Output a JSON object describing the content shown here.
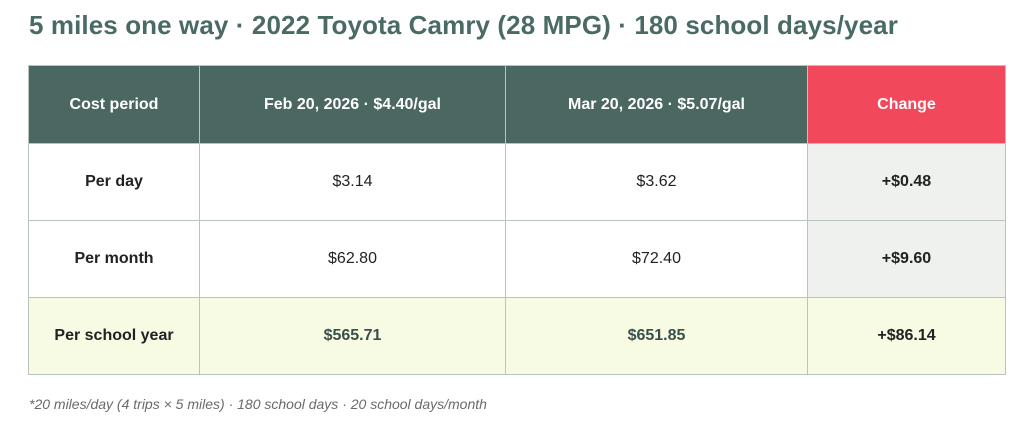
{
  "title": "5 miles one way · 2022 Toyota Camry (28 MPG) · 180 school days/year",
  "table": {
    "headers": {
      "period": "Cost period",
      "feb": "Feb 20, 2026 · $4.40/gal",
      "mar": "Mar 20, 2026 · $5.07/gal",
      "change": "Change"
    },
    "rows": [
      {
        "label": "Per day",
        "feb": "$3.14",
        "mar": "$3.62",
        "change": "+$0.48"
      },
      {
        "label": "Per month",
        "feb": "$62.80",
        "mar": "$72.40",
        "change": "+$9.60"
      },
      {
        "label": "Per school year",
        "feb": "$565.71",
        "mar": "$651.85",
        "change": "+$86.14"
      }
    ]
  },
  "footnote": "*20 miles/day (4 trips × 5 miles) · 180 school days · 20 school days/month",
  "colors": {
    "header_bg": "#4a6762",
    "change_header_bg": "#f1485c",
    "row_label": "#5cb57d",
    "change_text": "#ee4a5c",
    "year_row_bg": "#f7fbe4",
    "title_text": "#4a6b65"
  }
}
